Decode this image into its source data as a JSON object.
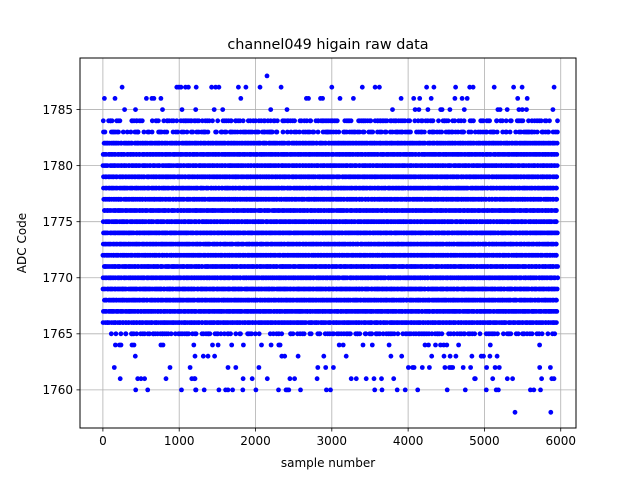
{
  "chart_data": {
    "type": "scatter",
    "title": "channel049 higain raw data",
    "xlabel": "sample number",
    "ylabel": "ADC Code",
    "xlim": [
      -300,
      6200
    ],
    "ylim": [
      1756.6,
      1789.6
    ],
    "xticks": [
      0,
      1000,
      2000,
      3000,
      4000,
      5000,
      6000
    ],
    "yticks": [
      1760,
      1765,
      1770,
      1775,
      1780,
      1785
    ],
    "grid": true,
    "marker_color": "#0000ff",
    "n_samples": 5942,
    "dense_levels": [
      1766,
      1767,
      1768,
      1769,
      1770,
      1771,
      1772,
      1773,
      1774,
      1775,
      1776,
      1777,
      1778,
      1779,
      1780,
      1781,
      1782
    ],
    "medium_levels": [
      1765,
      1783,
      1784
    ],
    "sparse_levels": [
      1760,
      1761,
      1762,
      1763,
      1764,
      1785,
      1786,
      1787
    ],
    "outliers": [
      {
        "x": 5400,
        "y": 1758
      },
      {
        "x": 5870,
        "y": 1758
      },
      {
        "x": 2150,
        "y": 1788
      },
      {
        "x": 1120,
        "y": 1787
      },
      {
        "x": 1520,
        "y": 1787
      },
      {
        "x": 2400,
        "y": 1760
      },
      {
        "x": 1520,
        "y": 1760
      },
      {
        "x": 1640,
        "y": 1760
      },
      {
        "x": 1700,
        "y": 1760
      },
      {
        "x": 500,
        "y": 1761
      },
      {
        "x": 3450,
        "y": 1761
      },
      {
        "x": 5300,
        "y": 1761
      },
      {
        "x": 20,
        "y": 1786
      },
      {
        "x": 5560,
        "y": 1786
      }
    ]
  }
}
